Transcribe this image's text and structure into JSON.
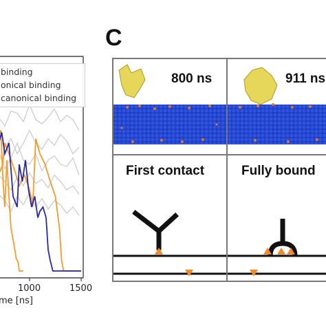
{
  "panel_label": "C",
  "chart_data": {
    "type": "line",
    "xlabel": "me [ns]",
    "xlim": [
      650,
      1550
    ],
    "ylim": [
      0,
      1
    ],
    "x_ticks": [
      "1000",
      "1500"
    ],
    "grid": false,
    "legend_placement": "top-right",
    "legend_entries": [
      "binding",
      "onical binding",
      "canonical binding"
    ],
    "colors": {
      "background_runs": "#cccccc",
      "orange": "#f39c2c",
      "blue": "#2626b0"
    },
    "series": [
      {
        "color": "background_runs",
        "x": [
          650,
          700,
          760,
          820,
          880,
          940,
          1000,
          1060,
          1120,
          1180,
          1240,
          1300,
          1360,
          1420,
          1480
        ],
        "y": [
          0.7,
          0.72,
          0.68,
          0.75,
          0.74,
          0.7,
          0.78,
          0.71,
          0.69,
          0.72,
          0.76,
          0.7,
          0.73,
          0.71,
          0.66
        ]
      },
      {
        "color": "background_runs",
        "x": [
          650,
          700,
          760,
          820,
          880,
          940,
          1000,
          1060,
          1120,
          1180,
          1240,
          1300,
          1360,
          1420,
          1480
        ],
        "y": [
          0.6,
          0.63,
          0.58,
          0.62,
          0.55,
          0.6,
          0.66,
          0.6,
          0.57,
          0.62,
          0.59,
          0.64,
          0.61,
          0.55,
          0.58
        ]
      },
      {
        "color": "background_runs",
        "x": [
          650,
          700,
          760,
          820,
          880,
          940,
          1000,
          1060,
          1120,
          1180,
          1240,
          1300,
          1360,
          1420,
          1480
        ],
        "y": [
          0.5,
          0.56,
          0.48,
          0.53,
          0.6,
          0.52,
          0.5,
          0.55,
          0.47,
          0.52,
          0.54,
          0.5,
          0.49,
          0.53,
          0.45
        ]
      },
      {
        "color": "background_runs",
        "x": [
          650,
          700,
          760,
          820,
          880,
          940,
          1000,
          1060,
          1120,
          1180,
          1240,
          1300,
          1360,
          1420,
          1480
        ],
        "y": [
          0.4,
          0.45,
          0.42,
          0.38,
          0.44,
          0.4,
          0.46,
          0.41,
          0.43,
          0.39,
          0.45,
          0.42,
          0.38,
          0.4,
          0.36
        ]
      },
      {
        "color": "background_runs",
        "x": [
          650,
          700,
          760,
          820,
          880,
          940,
          1000,
          1060,
          1120,
          1180,
          1240,
          1300,
          1360,
          1420,
          1480
        ],
        "y": [
          0.3,
          0.36,
          0.33,
          0.28,
          0.35,
          0.31,
          0.37,
          0.3,
          0.34,
          0.29,
          0.33,
          0.31,
          0.27,
          0.3,
          0.26
        ]
      },
      {
        "color": "orange",
        "x": [
          650,
          690,
          720,
          745,
          760,
          780,
          800,
          820,
          850,
          870,
          890,
          900,
          920,
          940
        ],
        "y": [
          0.7,
          0.62,
          0.66,
          0.4,
          0.3,
          0.52,
          0.35,
          0.2,
          0.12,
          0.06,
          0.04,
          0.0,
          0.0,
          0.0
        ]
      },
      {
        "color": "orange",
        "x": [
          650,
          700,
          740,
          760,
          800,
          850,
          900,
          950,
          1000,
          1030,
          1060,
          1100,
          1150,
          1200,
          1250,
          1290,
          1310,
          1330,
          1500
        ],
        "y": [
          0.55,
          0.45,
          0.5,
          0.6,
          0.55,
          0.48,
          0.4,
          0.45,
          0.38,
          0.3,
          0.62,
          0.55,
          0.5,
          0.42,
          0.35,
          0.2,
          0.05,
          0.0,
          0.0
        ]
      },
      {
        "color": "blue",
        "x": [
          650,
          700,
          730,
          760,
          800,
          840,
          880,
          900,
          930,
          960,
          990,
          1020,
          1050,
          1080,
          1100,
          1130,
          1160,
          1180,
          1200,
          1215,
          1225,
          1500
        ],
        "y": [
          0.68,
          0.6,
          0.65,
          0.55,
          0.6,
          0.35,
          0.3,
          0.5,
          0.42,
          0.52,
          0.38,
          0.3,
          0.35,
          0.25,
          0.28,
          0.3,
          0.25,
          0.1,
          0.05,
          0.02,
          0.0,
          0.0
        ]
      }
    ]
  },
  "md_panels": [
    {
      "time": "800 ns"
    },
    {
      "time": "911 ns"
    }
  ],
  "schematics": [
    {
      "title": "First contact"
    },
    {
      "title": "Fully bound"
    }
  ]
}
